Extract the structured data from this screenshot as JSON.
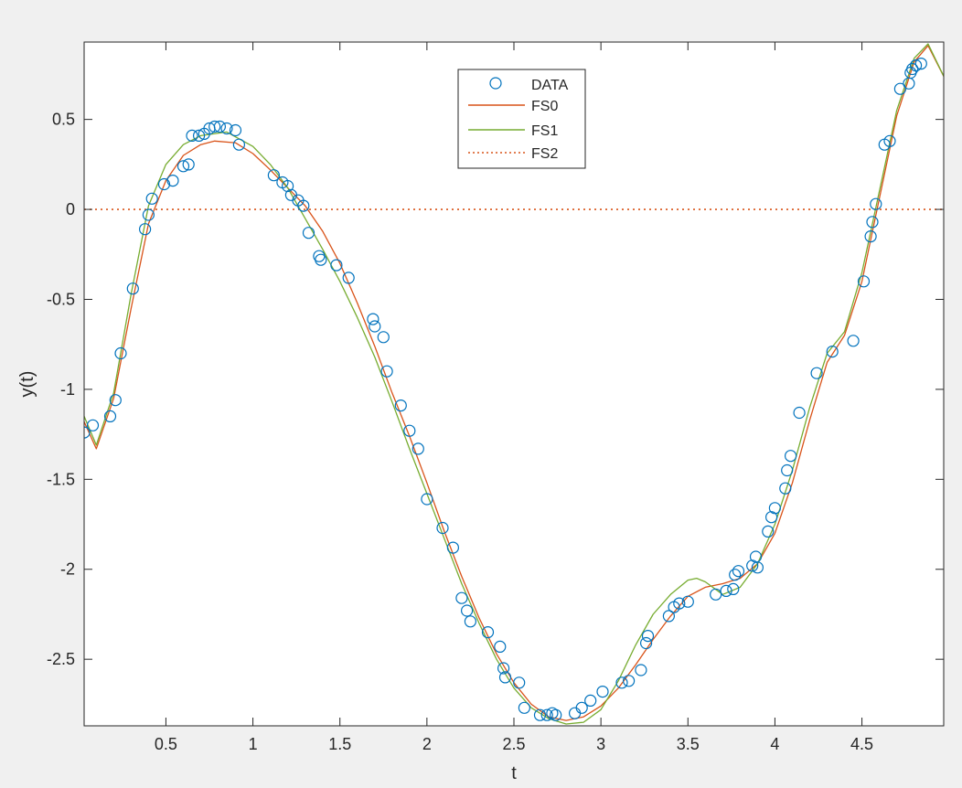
{
  "chart_data": {
    "type": "line",
    "title": "",
    "xlabel": "t",
    "ylabel": "y(t)",
    "xlim": [
      0.03,
      4.97
    ],
    "ylim": [
      -2.87,
      0.93
    ],
    "xticks": [
      0.5,
      1,
      1.5,
      2,
      2.5,
      3,
      3.5,
      4,
      4.5
    ],
    "xtick_labels": [
      "0.5",
      "1",
      "1.5",
      "2",
      "2.5",
      "3",
      "3.5",
      "4",
      "4.5"
    ],
    "yticks": [
      0.5,
      0,
      -0.5,
      -1,
      -1.5,
      -2,
      -2.5
    ],
    "ytick_labels": [
      "0.5",
      "0",
      "-0.5",
      "-1",
      "-1.5",
      "-2",
      "-2.5"
    ],
    "grid": false,
    "legend_position": "top-center",
    "legend": [
      "DATA",
      "FS0",
      "FS1",
      "FS2"
    ],
    "series": [
      {
        "name": "DATA",
        "style": "markers",
        "color": "#0072bd",
        "x": [
          0.03,
          0.08,
          0.18,
          0.21,
          0.24,
          0.31,
          0.38,
          0.4,
          0.42,
          0.49,
          0.54,
          0.6,
          0.63,
          0.65,
          0.69,
          0.72,
          0.75,
          0.78,
          0.81,
          0.85,
          0.9,
          0.92,
          1.12,
          1.17,
          1.2,
          1.22,
          1.26,
          1.29,
          1.32,
          1.38,
          1.39,
          1.48,
          1.55,
          1.69,
          1.7,
          1.75,
          1.77,
          1.85,
          1.9,
          1.95,
          2.0,
          2.09,
          2.15,
          2.2,
          2.23,
          2.25,
          2.35,
          2.42,
          2.44,
          2.45,
          2.53,
          2.56,
          2.65,
          2.69,
          2.72,
          2.74,
          2.85,
          2.89,
          2.94,
          3.01,
          3.12,
          3.16,
          3.23,
          3.26,
          3.27,
          3.39,
          3.42,
          3.45,
          3.5,
          3.66,
          3.72,
          3.76,
          3.77,
          3.79,
          3.87,
          3.89,
          3.9,
          3.96,
          3.98,
          4.0,
          4.06,
          4.07,
          4.09,
          4.14,
          4.24,
          4.33,
          4.45,
          4.51,
          4.55,
          4.56,
          4.58,
          4.63,
          4.66,
          4.72,
          4.77,
          4.78,
          4.79,
          4.81,
          4.84
        ],
        "y": [
          -1.24,
          -1.2,
          -1.15,
          -1.06,
          -0.8,
          -0.44,
          -0.11,
          -0.03,
          0.06,
          0.14,
          0.16,
          0.24,
          0.25,
          0.41,
          0.41,
          0.42,
          0.45,
          0.46,
          0.46,
          0.45,
          0.44,
          0.36,
          0.19,
          0.15,
          0.13,
          0.08,
          0.05,
          0.02,
          -0.13,
          -0.26,
          -0.28,
          -0.31,
          -0.38,
          -0.61,
          -0.65,
          -0.71,
          -0.9,
          -1.09,
          -1.23,
          -1.33,
          -1.61,
          -1.77,
          -1.88,
          -2.16,
          -2.23,
          -2.29,
          -2.35,
          -2.43,
          -2.55,
          -2.6,
          -2.63,
          -2.77,
          -2.81,
          -2.81,
          -2.8,
          -2.81,
          -2.8,
          -2.77,
          -2.73,
          -2.68,
          -2.63,
          -2.62,
          -2.56,
          -2.41,
          -2.37,
          -2.26,
          -2.21,
          -2.19,
          -2.18,
          -2.14,
          -2.12,
          -2.11,
          -2.03,
          -2.01,
          -1.98,
          -1.93,
          -1.99,
          -1.79,
          -1.71,
          -1.66,
          -1.55,
          -1.45,
          -1.37,
          -1.13,
          -0.91,
          -0.79,
          -0.73,
          -0.4,
          -0.15,
          -0.07,
          0.03,
          0.36,
          0.38,
          0.67,
          0.7,
          0.76,
          0.78,
          0.8,
          0.81
        ]
      },
      {
        "name": "FS0",
        "style": "solid",
        "color": "#d95319",
        "x": [
          0.03,
          0.1,
          0.2,
          0.3,
          0.4,
          0.5,
          0.6,
          0.7,
          0.78,
          0.9,
          1.0,
          1.1,
          1.2,
          1.3,
          1.4,
          1.5,
          1.6,
          1.7,
          1.8,
          1.9,
          2.0,
          2.1,
          2.2,
          2.3,
          2.4,
          2.5,
          2.6,
          2.7,
          2.8,
          2.9,
          3.0,
          3.1,
          3.2,
          3.3,
          3.4,
          3.5,
          3.6,
          3.7,
          3.8,
          3.9,
          4.0,
          4.1,
          4.2,
          4.3,
          4.4,
          4.5,
          4.6,
          4.7,
          4.8,
          4.88,
          4.97
        ],
        "y": [
          -1.18,
          -1.33,
          -1.05,
          -0.55,
          -0.08,
          0.16,
          0.3,
          0.36,
          0.38,
          0.37,
          0.31,
          0.22,
          0.12,
          0.02,
          -0.12,
          -0.3,
          -0.52,
          -0.76,
          -1.02,
          -1.26,
          -1.52,
          -1.79,
          -2.04,
          -2.27,
          -2.47,
          -2.63,
          -2.75,
          -2.82,
          -2.84,
          -2.82,
          -2.76,
          -2.66,
          -2.53,
          -2.39,
          -2.26,
          -2.15,
          -2.1,
          -2.08,
          -2.05,
          -1.97,
          -1.8,
          -1.52,
          -1.17,
          -0.85,
          -0.7,
          -0.4,
          0.06,
          0.52,
          0.82,
          0.91,
          0.74
        ]
      },
      {
        "name": "FS1",
        "style": "solid",
        "color": "#77ac30",
        "x": [
          0.03,
          0.1,
          0.2,
          0.3,
          0.4,
          0.5,
          0.6,
          0.7,
          0.85,
          1.0,
          1.1,
          1.2,
          1.3,
          1.4,
          1.5,
          1.6,
          1.7,
          1.8,
          1.9,
          2.0,
          2.1,
          2.2,
          2.3,
          2.4,
          2.5,
          2.6,
          2.7,
          2.8,
          2.9,
          3.0,
          3.1,
          3.2,
          3.3,
          3.4,
          3.5,
          3.55,
          3.6,
          3.7,
          3.8,
          3.9,
          4.0,
          4.1,
          4.2,
          4.3,
          4.4,
          4.5,
          4.6,
          4.7,
          4.8,
          4.88,
          4.97
        ],
        "y": [
          -1.15,
          -1.31,
          -1.02,
          -0.47,
          0.02,
          0.25,
          0.36,
          0.41,
          0.43,
          0.35,
          0.25,
          0.12,
          -0.05,
          -0.22,
          -0.4,
          -0.6,
          -0.82,
          -1.07,
          -1.33,
          -1.58,
          -1.83,
          -2.08,
          -2.3,
          -2.5,
          -2.66,
          -2.77,
          -2.83,
          -2.86,
          -2.85,
          -2.78,
          -2.62,
          -2.42,
          -2.25,
          -2.14,
          -2.06,
          -2.05,
          -2.07,
          -2.14,
          -2.1,
          -1.97,
          -1.75,
          -1.45,
          -1.1,
          -0.8,
          -0.68,
          -0.35,
          0.1,
          0.55,
          0.84,
          0.92,
          0.74
        ]
      },
      {
        "name": "FS2",
        "style": "dotted",
        "color": "#d95319",
        "x": [
          0.03,
          4.97
        ],
        "y": [
          0,
          0
        ]
      }
    ]
  }
}
